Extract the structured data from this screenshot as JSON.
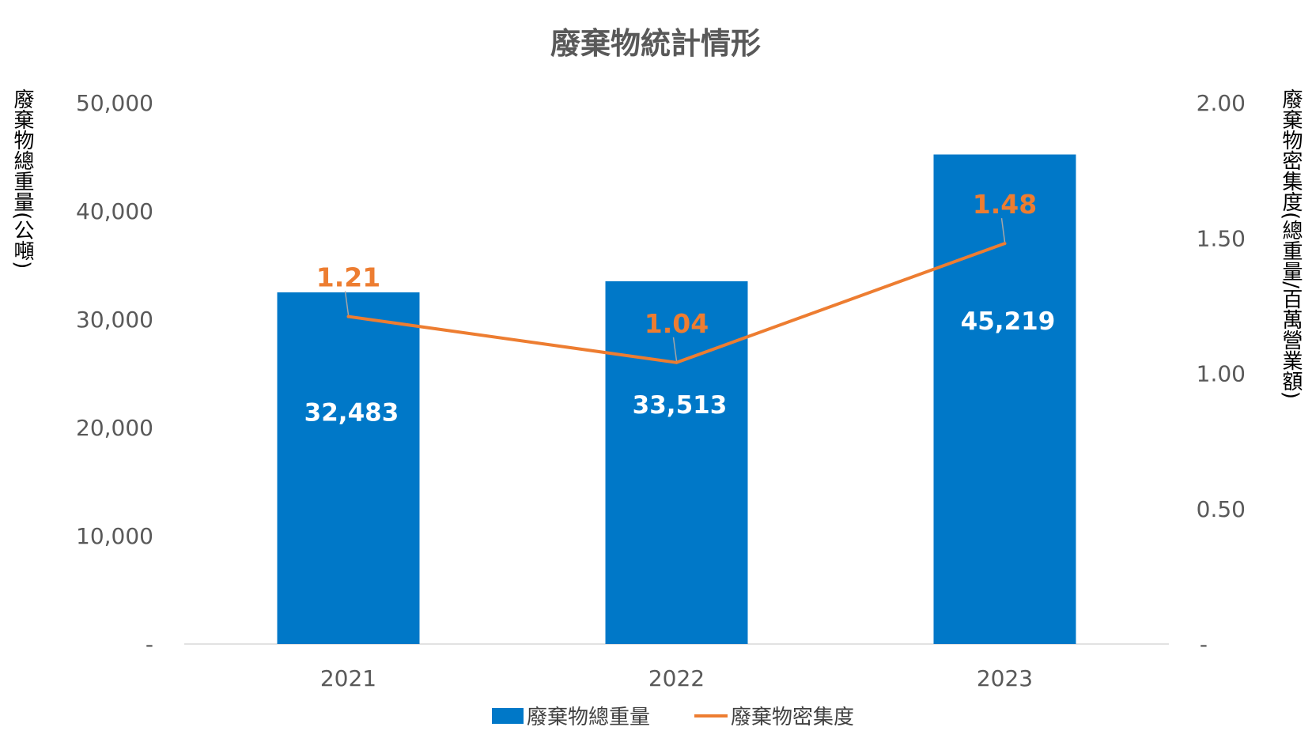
{
  "chart_data": {
    "type": "bar",
    "title": "廢棄物統計情形",
    "categories": [
      "2021",
      "2022",
      "2023"
    ],
    "series": [
      {
        "name": "廢棄物總重量",
        "type": "bar",
        "axis": "left",
        "values": [
          32483,
          33513,
          45219
        ],
        "labels": [
          "32,483",
          "33,513",
          "45,219"
        ],
        "color": "#0078C8"
      },
      {
        "name": "廢棄物密集度",
        "type": "line",
        "axis": "right",
        "values": [
          1.21,
          1.04,
          1.48
        ],
        "labels": [
          "1.21",
          "1.04",
          "1.48"
        ],
        "color": "#ED7D31"
      }
    ],
    "ylabel": "廢棄物總重量(公噸)",
    "y2label": "廢棄物密集度(總重量/百萬營業額)",
    "ylim": [
      0,
      50000
    ],
    "y2lim": [
      0,
      2.0
    ],
    "yticks": [
      {
        "value": 0,
        "label": "-"
      },
      {
        "value": 10000,
        "label": "10,000"
      },
      {
        "value": 20000,
        "label": "20,000"
      },
      {
        "value": 30000,
        "label": "30,000"
      },
      {
        "value": 40000,
        "label": "40,000"
      },
      {
        "value": 50000,
        "label": "50,000"
      }
    ],
    "y2ticks": [
      {
        "value": 0,
        "label": "-"
      },
      {
        "value": 0.5,
        "label": "0.50"
      },
      {
        "value": 1.0,
        "label": "1.00"
      },
      {
        "value": 1.5,
        "label": "1.50"
      },
      {
        "value": 2.0,
        "label": "2.00"
      }
    ],
    "grid": false,
    "legend_position": "bottom"
  }
}
